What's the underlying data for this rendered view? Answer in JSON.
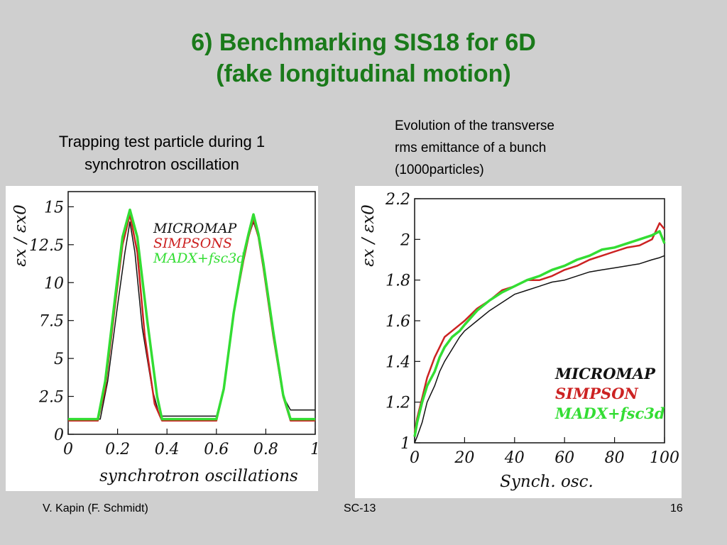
{
  "slide": {
    "title_line1": "6) Benchmarking SIS18 for 6D",
    "title_line2": "(fake longitudinal motion)",
    "caption_left_line1": "Trapping test particle during  1",
    "caption_left_line2": "synchrotron oscillation",
    "caption_right_line1": "Evolution of the transverse",
    "caption_right_line2": "rms emittance of a bunch",
    "caption_right_line3": "(1000particles)",
    "footer_left": "V. Kapin (F. Schmidt)",
    "footer_center": "SC-13",
    "footer_right": "16"
  },
  "colors": {
    "title": "#1a7a1a",
    "micromap": "#111111",
    "simpson": "#cc2222",
    "madx": "#33dd33"
  },
  "chart_data": [
    {
      "type": "line",
      "xlabel": "synchrotron oscillations",
      "ylabel": "εx / εx0",
      "xlim": [
        0,
        1
      ],
      "ylim": [
        0,
        16
      ],
      "xticks": [
        0,
        0.2,
        0.4,
        0.6,
        0.8,
        1
      ],
      "xtick_labels": [
        "0",
        "0.2",
        "0.4",
        "0.6",
        "0.8",
        "1"
      ],
      "yticks": [
        0,
        2.5,
        5,
        7.5,
        10,
        12.5,
        15
      ],
      "ytick_labels": [
        "0",
        "2.5",
        "5",
        "7.5",
        "10",
        "12.5",
        "15"
      ],
      "legend_position": "top-right",
      "series": [
        {
          "name": "MICROMAP",
          "x": [
            0,
            0.13,
            0.16,
            0.2,
            0.23,
            0.25,
            0.27,
            0.3,
            0.34,
            0.37,
            0.4,
            0.5,
            0.6,
            0.63,
            0.67,
            0.71,
            0.73,
            0.75,
            0.77,
            0.79,
            0.83,
            0.87,
            0.9,
            1.0
          ],
          "y": [
            1.0,
            1.0,
            3.5,
            8.5,
            12.0,
            14.0,
            12.0,
            7.0,
            3.0,
            1.2,
            1.2,
            1.2,
            1.2,
            3.0,
            8.0,
            11.5,
            13.0,
            14.0,
            13.0,
            11.0,
            6.5,
            2.5,
            1.6,
            1.6
          ]
        },
        {
          "name": "SIMPSONS",
          "x": [
            0,
            0.12,
            0.15,
            0.19,
            0.22,
            0.25,
            0.28,
            0.31,
            0.35,
            0.38,
            0.41,
            0.5,
            0.6,
            0.63,
            0.67,
            0.71,
            0.73,
            0.75,
            0.77,
            0.79,
            0.83,
            0.87,
            0.9,
            1.0
          ],
          "y": [
            0.9,
            0.9,
            3.0,
            8.5,
            12.5,
            14.5,
            12.0,
            6.5,
            2.0,
            0.9,
            0.9,
            0.9,
            0.9,
            3.0,
            8.0,
            11.5,
            13.0,
            14.2,
            13.0,
            11.0,
            6.5,
            2.5,
            0.9,
            0.9
          ]
        },
        {
          "name": "MADX+fsc3d",
          "x": [
            0,
            0.12,
            0.15,
            0.19,
            0.22,
            0.25,
            0.28,
            0.32,
            0.36,
            0.38,
            0.42,
            0.5,
            0.6,
            0.63,
            0.67,
            0.71,
            0.73,
            0.75,
            0.77,
            0.79,
            0.83,
            0.87,
            0.9,
            1.0
          ],
          "y": [
            1.0,
            1.0,
            3.5,
            9.0,
            13.0,
            14.8,
            13.0,
            7.5,
            2.5,
            1.0,
            1.0,
            1.0,
            1.0,
            3.0,
            8.0,
            11.8,
            13.2,
            14.5,
            13.2,
            11.3,
            6.8,
            2.6,
            1.0,
            1.0
          ]
        }
      ]
    },
    {
      "type": "line",
      "xlabel": "Synch. osc.",
      "ylabel": "εx / εx0",
      "xlim": [
        0,
        100
      ],
      "ylim": [
        1,
        2.2
      ],
      "xticks": [
        0,
        20,
        40,
        60,
        80,
        100
      ],
      "xtick_labels": [
        "0",
        "20",
        "40",
        "60",
        "80",
        "100"
      ],
      "yticks": [
        1,
        1.2,
        1.4,
        1.6,
        1.8,
        2,
        2.2
      ],
      "ytick_labels": [
        "1",
        "1.2",
        "1.4",
        "1.6",
        "1.8",
        "2",
        "2.2"
      ],
      "legend_position": "bottom-right",
      "series": [
        {
          "name": "MICROMAP",
          "x": [
            0,
            1,
            3,
            5,
            8,
            10,
            12,
            15,
            18,
            20,
            25,
            30,
            35,
            40,
            45,
            50,
            55,
            60,
            65,
            70,
            75,
            80,
            85,
            90,
            95,
            98,
            100
          ],
          "y": [
            1.0,
            1.03,
            1.1,
            1.2,
            1.28,
            1.35,
            1.4,
            1.46,
            1.52,
            1.55,
            1.6,
            1.65,
            1.69,
            1.73,
            1.75,
            1.77,
            1.79,
            1.8,
            1.82,
            1.84,
            1.85,
            1.86,
            1.87,
            1.88,
            1.9,
            1.91,
            1.92
          ]
        },
        {
          "name": "SIMPSON",
          "x": [
            0,
            1,
            3,
            5,
            8,
            10,
            12,
            15,
            18,
            20,
            25,
            30,
            35,
            40,
            45,
            50,
            55,
            60,
            65,
            70,
            75,
            80,
            85,
            90,
            95,
            98,
            100
          ],
          "y": [
            1.05,
            1.12,
            1.22,
            1.32,
            1.42,
            1.47,
            1.52,
            1.55,
            1.58,
            1.6,
            1.66,
            1.7,
            1.75,
            1.77,
            1.8,
            1.8,
            1.82,
            1.85,
            1.87,
            1.9,
            1.92,
            1.94,
            1.96,
            1.97,
            2.0,
            2.08,
            2.05
          ]
        },
        {
          "name": "MADX+fsc3d",
          "x": [
            0,
            1,
            3,
            5,
            8,
            10,
            12,
            15,
            18,
            20,
            25,
            30,
            35,
            40,
            45,
            50,
            55,
            60,
            65,
            70,
            75,
            80,
            85,
            90,
            95,
            98,
            100
          ],
          "y": [
            1.03,
            1.1,
            1.2,
            1.28,
            1.35,
            1.42,
            1.47,
            1.52,
            1.55,
            1.58,
            1.65,
            1.7,
            1.74,
            1.77,
            1.8,
            1.82,
            1.85,
            1.87,
            1.9,
            1.92,
            1.95,
            1.96,
            1.98,
            2.0,
            2.02,
            2.04,
            1.98
          ]
        }
      ]
    }
  ]
}
